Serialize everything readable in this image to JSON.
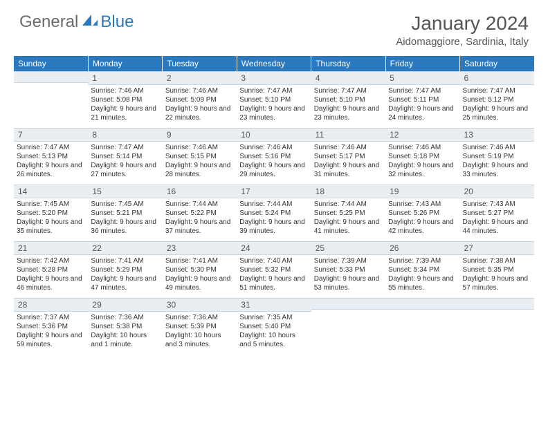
{
  "logo": {
    "general": "General",
    "blue": "Blue"
  },
  "header": {
    "title": "January 2024",
    "location": "Aidomaggiore, Sardinia, Italy"
  },
  "colors": {
    "accent": "#2a78bd",
    "header_bg": "#2a78bd",
    "header_text": "#ffffff",
    "daynum_bg": "#e9eef3",
    "text": "#333333"
  },
  "daynames": [
    "Sunday",
    "Monday",
    "Tuesday",
    "Wednesday",
    "Thursday",
    "Friday",
    "Saturday"
  ],
  "weeks": [
    [
      {
        "n": "",
        "sunrise": "",
        "sunset": "",
        "daylight": ""
      },
      {
        "n": "1",
        "sunrise": "Sunrise: 7:46 AM",
        "sunset": "Sunset: 5:08 PM",
        "daylight": "Daylight: 9 hours and 21 minutes."
      },
      {
        "n": "2",
        "sunrise": "Sunrise: 7:46 AM",
        "sunset": "Sunset: 5:09 PM",
        "daylight": "Daylight: 9 hours and 22 minutes."
      },
      {
        "n": "3",
        "sunrise": "Sunrise: 7:47 AM",
        "sunset": "Sunset: 5:10 PM",
        "daylight": "Daylight: 9 hours and 23 minutes."
      },
      {
        "n": "4",
        "sunrise": "Sunrise: 7:47 AM",
        "sunset": "Sunset: 5:10 PM",
        "daylight": "Daylight: 9 hours and 23 minutes."
      },
      {
        "n": "5",
        "sunrise": "Sunrise: 7:47 AM",
        "sunset": "Sunset: 5:11 PM",
        "daylight": "Daylight: 9 hours and 24 minutes."
      },
      {
        "n": "6",
        "sunrise": "Sunrise: 7:47 AM",
        "sunset": "Sunset: 5:12 PM",
        "daylight": "Daylight: 9 hours and 25 minutes."
      }
    ],
    [
      {
        "n": "7",
        "sunrise": "Sunrise: 7:47 AM",
        "sunset": "Sunset: 5:13 PM",
        "daylight": "Daylight: 9 hours and 26 minutes."
      },
      {
        "n": "8",
        "sunrise": "Sunrise: 7:47 AM",
        "sunset": "Sunset: 5:14 PM",
        "daylight": "Daylight: 9 hours and 27 minutes."
      },
      {
        "n": "9",
        "sunrise": "Sunrise: 7:46 AM",
        "sunset": "Sunset: 5:15 PM",
        "daylight": "Daylight: 9 hours and 28 minutes."
      },
      {
        "n": "10",
        "sunrise": "Sunrise: 7:46 AM",
        "sunset": "Sunset: 5:16 PM",
        "daylight": "Daylight: 9 hours and 29 minutes."
      },
      {
        "n": "11",
        "sunrise": "Sunrise: 7:46 AM",
        "sunset": "Sunset: 5:17 PM",
        "daylight": "Daylight: 9 hours and 31 minutes."
      },
      {
        "n": "12",
        "sunrise": "Sunrise: 7:46 AM",
        "sunset": "Sunset: 5:18 PM",
        "daylight": "Daylight: 9 hours and 32 minutes."
      },
      {
        "n": "13",
        "sunrise": "Sunrise: 7:46 AM",
        "sunset": "Sunset: 5:19 PM",
        "daylight": "Daylight: 9 hours and 33 minutes."
      }
    ],
    [
      {
        "n": "14",
        "sunrise": "Sunrise: 7:45 AM",
        "sunset": "Sunset: 5:20 PM",
        "daylight": "Daylight: 9 hours and 35 minutes."
      },
      {
        "n": "15",
        "sunrise": "Sunrise: 7:45 AM",
        "sunset": "Sunset: 5:21 PM",
        "daylight": "Daylight: 9 hours and 36 minutes."
      },
      {
        "n": "16",
        "sunrise": "Sunrise: 7:44 AM",
        "sunset": "Sunset: 5:22 PM",
        "daylight": "Daylight: 9 hours and 37 minutes."
      },
      {
        "n": "17",
        "sunrise": "Sunrise: 7:44 AM",
        "sunset": "Sunset: 5:24 PM",
        "daylight": "Daylight: 9 hours and 39 minutes."
      },
      {
        "n": "18",
        "sunrise": "Sunrise: 7:44 AM",
        "sunset": "Sunset: 5:25 PM",
        "daylight": "Daylight: 9 hours and 41 minutes."
      },
      {
        "n": "19",
        "sunrise": "Sunrise: 7:43 AM",
        "sunset": "Sunset: 5:26 PM",
        "daylight": "Daylight: 9 hours and 42 minutes."
      },
      {
        "n": "20",
        "sunrise": "Sunrise: 7:43 AM",
        "sunset": "Sunset: 5:27 PM",
        "daylight": "Daylight: 9 hours and 44 minutes."
      }
    ],
    [
      {
        "n": "21",
        "sunrise": "Sunrise: 7:42 AM",
        "sunset": "Sunset: 5:28 PM",
        "daylight": "Daylight: 9 hours and 46 minutes."
      },
      {
        "n": "22",
        "sunrise": "Sunrise: 7:41 AM",
        "sunset": "Sunset: 5:29 PM",
        "daylight": "Daylight: 9 hours and 47 minutes."
      },
      {
        "n": "23",
        "sunrise": "Sunrise: 7:41 AM",
        "sunset": "Sunset: 5:30 PM",
        "daylight": "Daylight: 9 hours and 49 minutes."
      },
      {
        "n": "24",
        "sunrise": "Sunrise: 7:40 AM",
        "sunset": "Sunset: 5:32 PM",
        "daylight": "Daylight: 9 hours and 51 minutes."
      },
      {
        "n": "25",
        "sunrise": "Sunrise: 7:39 AM",
        "sunset": "Sunset: 5:33 PM",
        "daylight": "Daylight: 9 hours and 53 minutes."
      },
      {
        "n": "26",
        "sunrise": "Sunrise: 7:39 AM",
        "sunset": "Sunset: 5:34 PM",
        "daylight": "Daylight: 9 hours and 55 minutes."
      },
      {
        "n": "27",
        "sunrise": "Sunrise: 7:38 AM",
        "sunset": "Sunset: 5:35 PM",
        "daylight": "Daylight: 9 hours and 57 minutes."
      }
    ],
    [
      {
        "n": "28",
        "sunrise": "Sunrise: 7:37 AM",
        "sunset": "Sunset: 5:36 PM",
        "daylight": "Daylight: 9 hours and 59 minutes."
      },
      {
        "n": "29",
        "sunrise": "Sunrise: 7:36 AM",
        "sunset": "Sunset: 5:38 PM",
        "daylight": "Daylight: 10 hours and 1 minute."
      },
      {
        "n": "30",
        "sunrise": "Sunrise: 7:36 AM",
        "sunset": "Sunset: 5:39 PM",
        "daylight": "Daylight: 10 hours and 3 minutes."
      },
      {
        "n": "31",
        "sunrise": "Sunrise: 7:35 AM",
        "sunset": "Sunset: 5:40 PM",
        "daylight": "Daylight: 10 hours and 5 minutes."
      },
      {
        "n": "",
        "sunrise": "",
        "sunset": "",
        "daylight": ""
      },
      {
        "n": "",
        "sunrise": "",
        "sunset": "",
        "daylight": ""
      },
      {
        "n": "",
        "sunrise": "",
        "sunset": "",
        "daylight": ""
      }
    ]
  ]
}
